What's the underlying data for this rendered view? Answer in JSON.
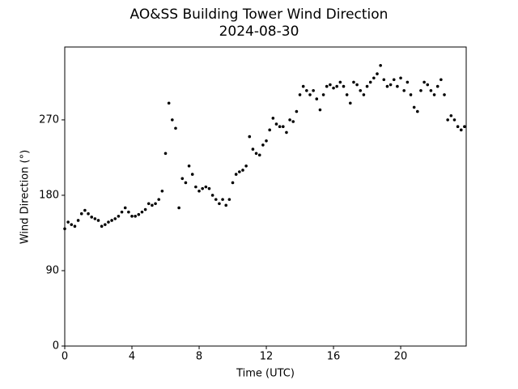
{
  "chart_data": {
    "type": "scatter",
    "title": "AO&SS Building Tower Wind Direction",
    "subtitle": "2024-08-30",
    "x_label": "Time (UTC)",
    "y_label": "Wind Direction (°)",
    "color": "#000000",
    "xlim": [
      0,
      23.9
    ],
    "xticks": [
      0,
      4,
      8,
      12,
      16,
      20
    ],
    "ylim": [
      0,
      357
    ],
    "yticks": [
      0,
      90,
      180,
      270
    ],
    "x": [
      0,
      0.2,
      0.4,
      0.6,
      0.8,
      1.0,
      1.2,
      1.4,
      1.6,
      1.8,
      2.0,
      2.2,
      2.4,
      2.6,
      2.8,
      3.0,
      3.2,
      3.4,
      3.6,
      3.8,
      4.0,
      4.2,
      4.4,
      4.6,
      4.8,
      5.0,
      5.2,
      5.4,
      5.6,
      5.8,
      6.0,
      6.2,
      6.4,
      6.6,
      6.8,
      7.0,
      7.2,
      7.4,
      7.6,
      7.8,
      8.0,
      8.2,
      8.4,
      8.6,
      8.8,
      9.0,
      9.2,
      9.4,
      9.6,
      9.8,
      10.0,
      10.2,
      10.4,
      10.6,
      10.8,
      11.0,
      11.2,
      11.4,
      11.6,
      11.8,
      12.0,
      12.2,
      12.4,
      12.6,
      12.8,
      13.0,
      13.2,
      13.4,
      13.6,
      13.8,
      14.0,
      14.2,
      14.4,
      14.6,
      14.8,
      15.0,
      15.2,
      15.4,
      15.6,
      15.8,
      16.0,
      16.2,
      16.4,
      16.6,
      16.8,
      17.0,
      17.2,
      17.4,
      17.6,
      17.8,
      18.0,
      18.2,
      18.4,
      18.6,
      18.8,
      19.0,
      19.2,
      19.4,
      19.6,
      19.8,
      20.0,
      20.2,
      20.4,
      20.6,
      20.8,
      21.0,
      21.2,
      21.4,
      21.6,
      21.8,
      22.0,
      22.2,
      22.4,
      22.6,
      22.8,
      23.0,
      23.2,
      23.4,
      23.6,
      23.8
    ],
    "values": [
      140,
      148,
      145,
      143,
      150,
      158,
      162,
      158,
      154,
      152,
      150,
      143,
      145,
      148,
      150,
      152,
      155,
      160,
      165,
      160,
      155,
      155,
      157,
      160,
      163,
      170,
      168,
      170,
      175,
      185,
      230,
      290,
      270,
      260,
      165,
      200,
      195,
      215,
      205,
      190,
      185,
      188,
      190,
      188,
      180,
      175,
      170,
      175,
      168,
      175,
      195,
      205,
      208,
      210,
      215,
      250,
      235,
      230,
      228,
      240,
      245,
      258,
      272,
      265,
      262,
      262,
      255,
      270,
      268,
      280,
      300,
      310,
      305,
      300,
      305,
      295,
      282,
      300,
      310,
      312,
      308,
      310,
      315,
      310,
      300,
      290,
      315,
      312,
      305,
      300,
      310,
      315,
      320,
      325,
      335,
      318,
      310,
      312,
      318,
      310,
      320,
      305,
      315,
      300,
      285,
      280,
      305,
      315,
      312,
      305,
      300,
      310,
      318,
      300,
      270,
      275,
      270,
      262,
      258,
      262
    ]
  }
}
